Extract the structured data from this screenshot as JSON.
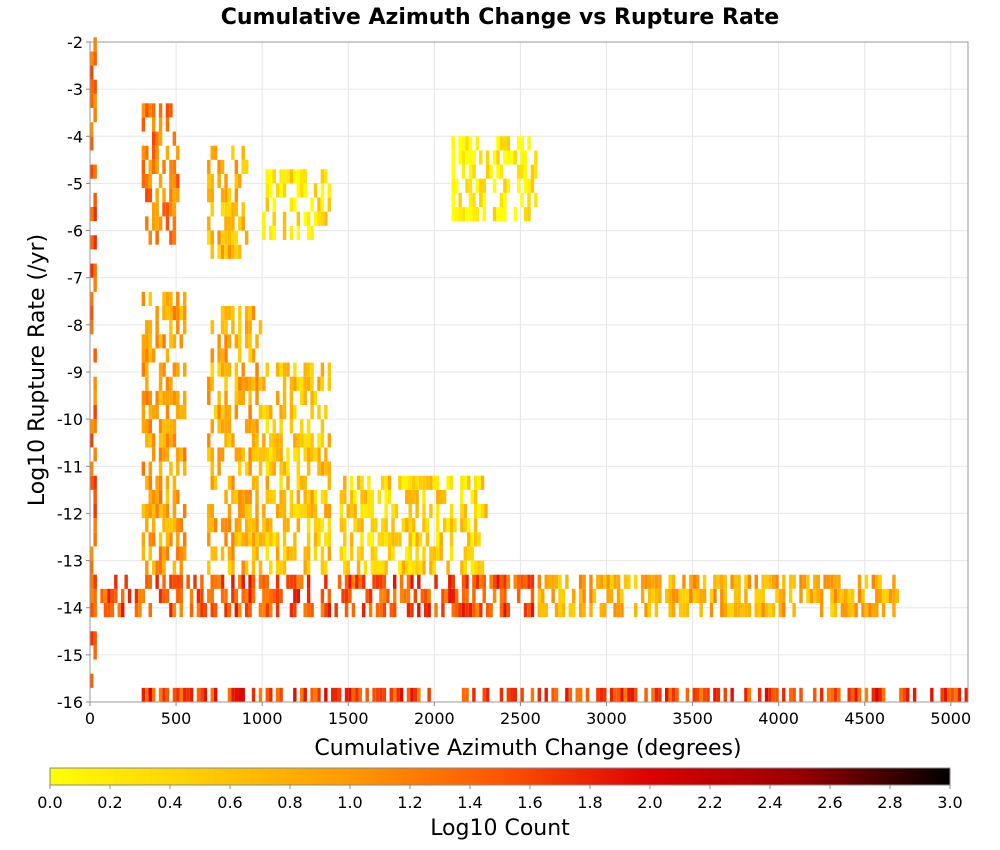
{
  "chart_data": {
    "type": "heatmap",
    "title": "Cumulative Azimuth Change vs Rupture Rate",
    "xlabel": "Cumulative Azimuth Change (degrees)",
    "ylabel": "Log10 Rupture Rate (/yr)",
    "xlim": [
      0,
      5100
    ],
    "ylim": [
      -16,
      -2
    ],
    "x_ticks": [
      0,
      500,
      1000,
      1500,
      2000,
      2500,
      3000,
      3500,
      4000,
      4500,
      5000
    ],
    "y_ticks": [
      -2,
      -3,
      -4,
      -5,
      -6,
      -7,
      -8,
      -9,
      -10,
      -11,
      -12,
      -13,
      -14,
      -15,
      -16
    ],
    "grid": true,
    "bin_width_x": 20,
    "bin_height_y": 0.3,
    "colorbar": {
      "label": "Log10 Count",
      "min": 0.0,
      "max": 3.0,
      "ticks": [
        "0.0",
        "0.2",
        "0.4",
        "0.6",
        "0.8",
        "1.0",
        "1.2",
        "1.4",
        "1.6",
        "1.8",
        "2.0",
        "2.2",
        "2.4",
        "2.6",
        "2.8",
        "3.0"
      ],
      "colors": [
        "#ffff00",
        "#ffcc00",
        "#ff9900",
        "#ff5500",
        "#dd0000",
        "#990000",
        "#000000"
      ],
      "placement": "bottom"
    },
    "clusters": [
      {
        "x": [
          0,
          40
        ],
        "y": [
          -16,
          -2
        ],
        "value": 1.4
      },
      {
        "x": [
          300,
          520
        ],
        "y": [
          -6.3,
          -3.4
        ],
        "value": 1.2
      },
      {
        "x": [
          680,
          920
        ],
        "y": [
          -6.6,
          -4.3
        ],
        "value": 0.7
      },
      {
        "x": [
          1000,
          1400
        ],
        "y": [
          -6.2,
          -4.8
        ],
        "value": 0.3
      },
      {
        "x": [
          2100,
          2600
        ],
        "y": [
          -5.8,
          -4.1
        ],
        "value": 0.15
      },
      {
        "x": [
          300,
          550
        ],
        "y": [
          -13.3,
          -7.4
        ],
        "value": 0.9
      },
      {
        "x": [
          680,
          1000
        ],
        "y": [
          -13.3,
          -7.8
        ],
        "value": 0.8
      },
      {
        "x": [
          1000,
          1400
        ],
        "y": [
          -13.3,
          -9.0
        ],
        "value": 0.6
      },
      {
        "x": [
          1450,
          2300
        ],
        "y": [
          -13.3,
          -11.4
        ],
        "value": 0.45
      },
      {
        "x": [
          0,
          2600
        ],
        "y": [
          -14.2,
          -13.3
        ],
        "value": 1.5
      },
      {
        "x": [
          2600,
          4700
        ],
        "y": [
          -14.2,
          -13.3
        ],
        "value": 0.8
      },
      {
        "x": [
          300,
          5100
        ],
        "y": [
          -16.0,
          -15.75
        ],
        "value": 1.6
      }
    ]
  }
}
